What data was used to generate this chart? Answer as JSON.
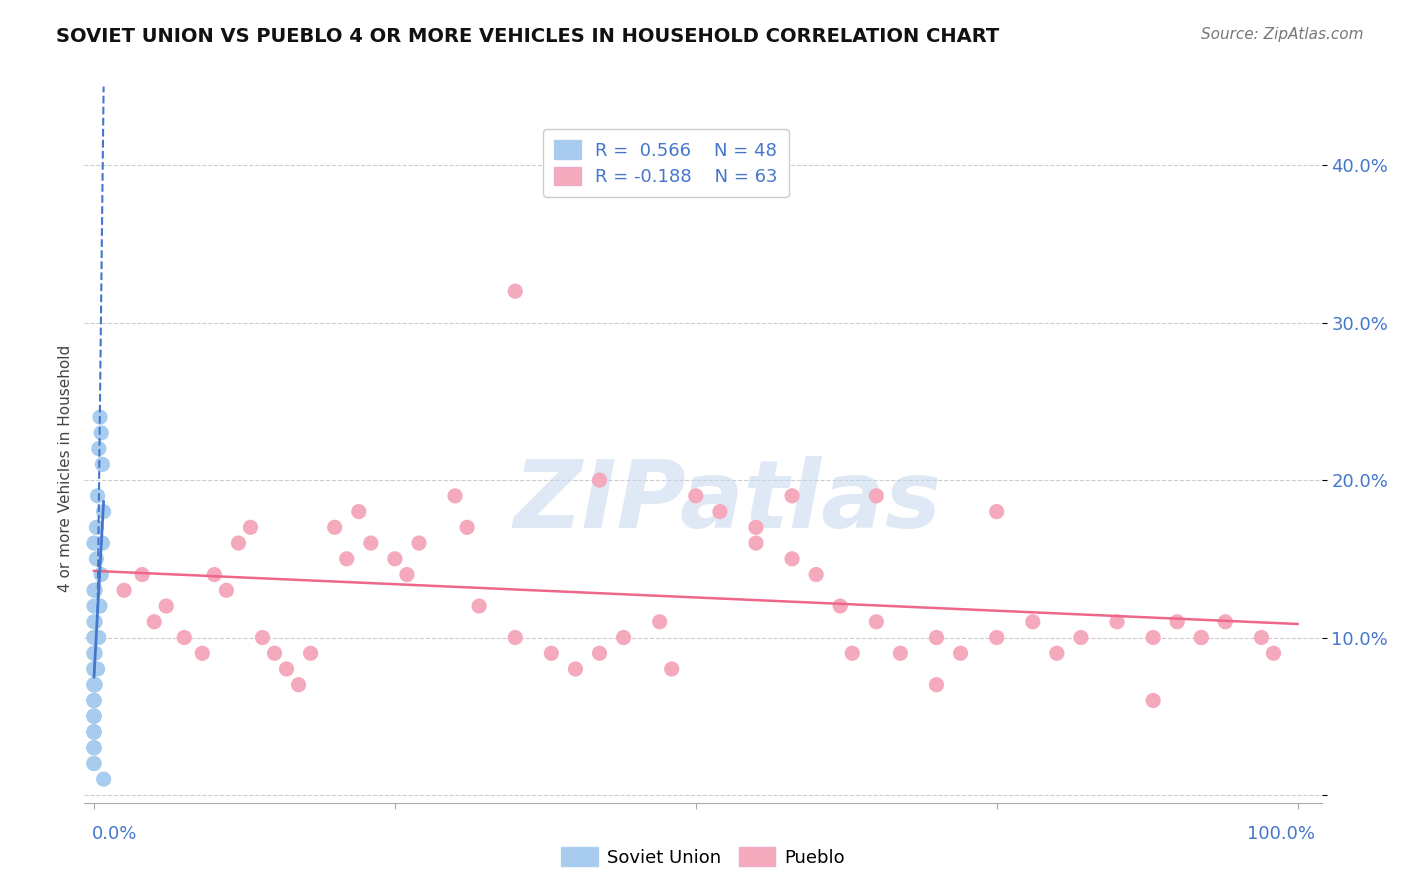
{
  "title": "SOVIET UNION VS PUEBLO 4 OR MORE VEHICLES IN HOUSEHOLD CORRELATION CHART",
  "source": "Source: ZipAtlas.com",
  "ylabel": "4 or more Vehicles in Household",
  "watermark": "ZIPatlas",
  "legend_line1": "R =  0.566    N = 48",
  "legend_line2": "R = -0.188    N = 63",
  "blue_scatter_color": "#A8CCEE",
  "pink_scatter_color": "#F4AABC",
  "blue_line_color": "#4477CC",
  "pink_line_color": "#EE6688",
  "blue_text_color": "#4477CC",
  "background_color": "#FFFFFF",
  "grid_color": "#CCCCCC",
  "xlim": [
    -0.008,
    1.02
  ],
  "ylim": [
    -0.005,
    0.42
  ],
  "y_ticks": [
    0.0,
    0.1,
    0.2,
    0.3,
    0.4
  ],
  "y_tick_labels": [
    "",
    "10.0%",
    "20.0%",
    "30.0%",
    "40.0%"
  ],
  "x_ticks": [
    0.0,
    0.25,
    0.5,
    0.75,
    1.0
  ],
  "soviet_x": [
    0.0,
    0.0,
    0.0,
    0.0,
    0.0,
    0.0,
    0.0,
    0.0,
    0.0,
    0.0,
    0.0,
    0.0,
    0.0,
    0.0,
    0.0,
    0.0,
    0.0,
    0.0,
    0.0,
    0.0,
    0.0,
    0.0,
    0.0,
    0.0,
    0.0,
    0.0,
    0.0,
    0.0,
    0.0,
    0.0,
    0.001,
    0.001,
    0.001,
    0.001,
    0.002,
    0.002,
    0.003,
    0.004,
    0.005,
    0.006,
    0.007,
    0.008,
    0.003,
    0.004,
    0.005,
    0.006,
    0.007,
    0.008
  ],
  "soviet_y": [
    0.03,
    0.04,
    0.05,
    0.06,
    0.07,
    0.08,
    0.09,
    0.1,
    0.11,
    0.12,
    0.04,
    0.05,
    0.06,
    0.07,
    0.08,
    0.02,
    0.03,
    0.04,
    0.05,
    0.06,
    0.02,
    0.03,
    0.04,
    0.05,
    0.07,
    0.08,
    0.09,
    0.1,
    0.13,
    0.16,
    0.07,
    0.09,
    0.11,
    0.13,
    0.15,
    0.17,
    0.19,
    0.22,
    0.24,
    0.23,
    0.21,
    0.18,
    0.08,
    0.1,
    0.12,
    0.14,
    0.16,
    0.01
  ],
  "pueblo_x": [
    0.025,
    0.04,
    0.05,
    0.06,
    0.075,
    0.09,
    0.1,
    0.11,
    0.12,
    0.13,
    0.14,
    0.15,
    0.16,
    0.17,
    0.18,
    0.2,
    0.21,
    0.22,
    0.23,
    0.25,
    0.26,
    0.27,
    0.3,
    0.31,
    0.32,
    0.35,
    0.38,
    0.4,
    0.42,
    0.44,
    0.47,
    0.5,
    0.52,
    0.55,
    0.58,
    0.6,
    0.63,
    0.65,
    0.67,
    0.7,
    0.72,
    0.75,
    0.78,
    0.8,
    0.82,
    0.85,
    0.88,
    0.9,
    0.92,
    0.94,
    0.97,
    0.98,
    0.35,
    0.42,
    0.48,
    0.55,
    0.58,
    0.62,
    0.65,
    0.7,
    0.75,
    0.88,
    0.92
  ],
  "pueblo_y": [
    0.13,
    0.14,
    0.11,
    0.12,
    0.1,
    0.09,
    0.14,
    0.13,
    0.16,
    0.17,
    0.1,
    0.09,
    0.08,
    0.07,
    0.09,
    0.17,
    0.15,
    0.18,
    0.16,
    0.15,
    0.14,
    0.16,
    0.19,
    0.17,
    0.12,
    0.1,
    0.09,
    0.08,
    0.09,
    0.1,
    0.11,
    0.19,
    0.18,
    0.17,
    0.19,
    0.14,
    0.09,
    0.11,
    0.09,
    0.1,
    0.09,
    0.1,
    0.11,
    0.09,
    0.1,
    0.11,
    0.1,
    0.11,
    0.1,
    0.11,
    0.1,
    0.09,
    0.32,
    0.2,
    0.08,
    0.16,
    0.15,
    0.12,
    0.19,
    0.07,
    0.18,
    0.06,
    0.1
  ]
}
